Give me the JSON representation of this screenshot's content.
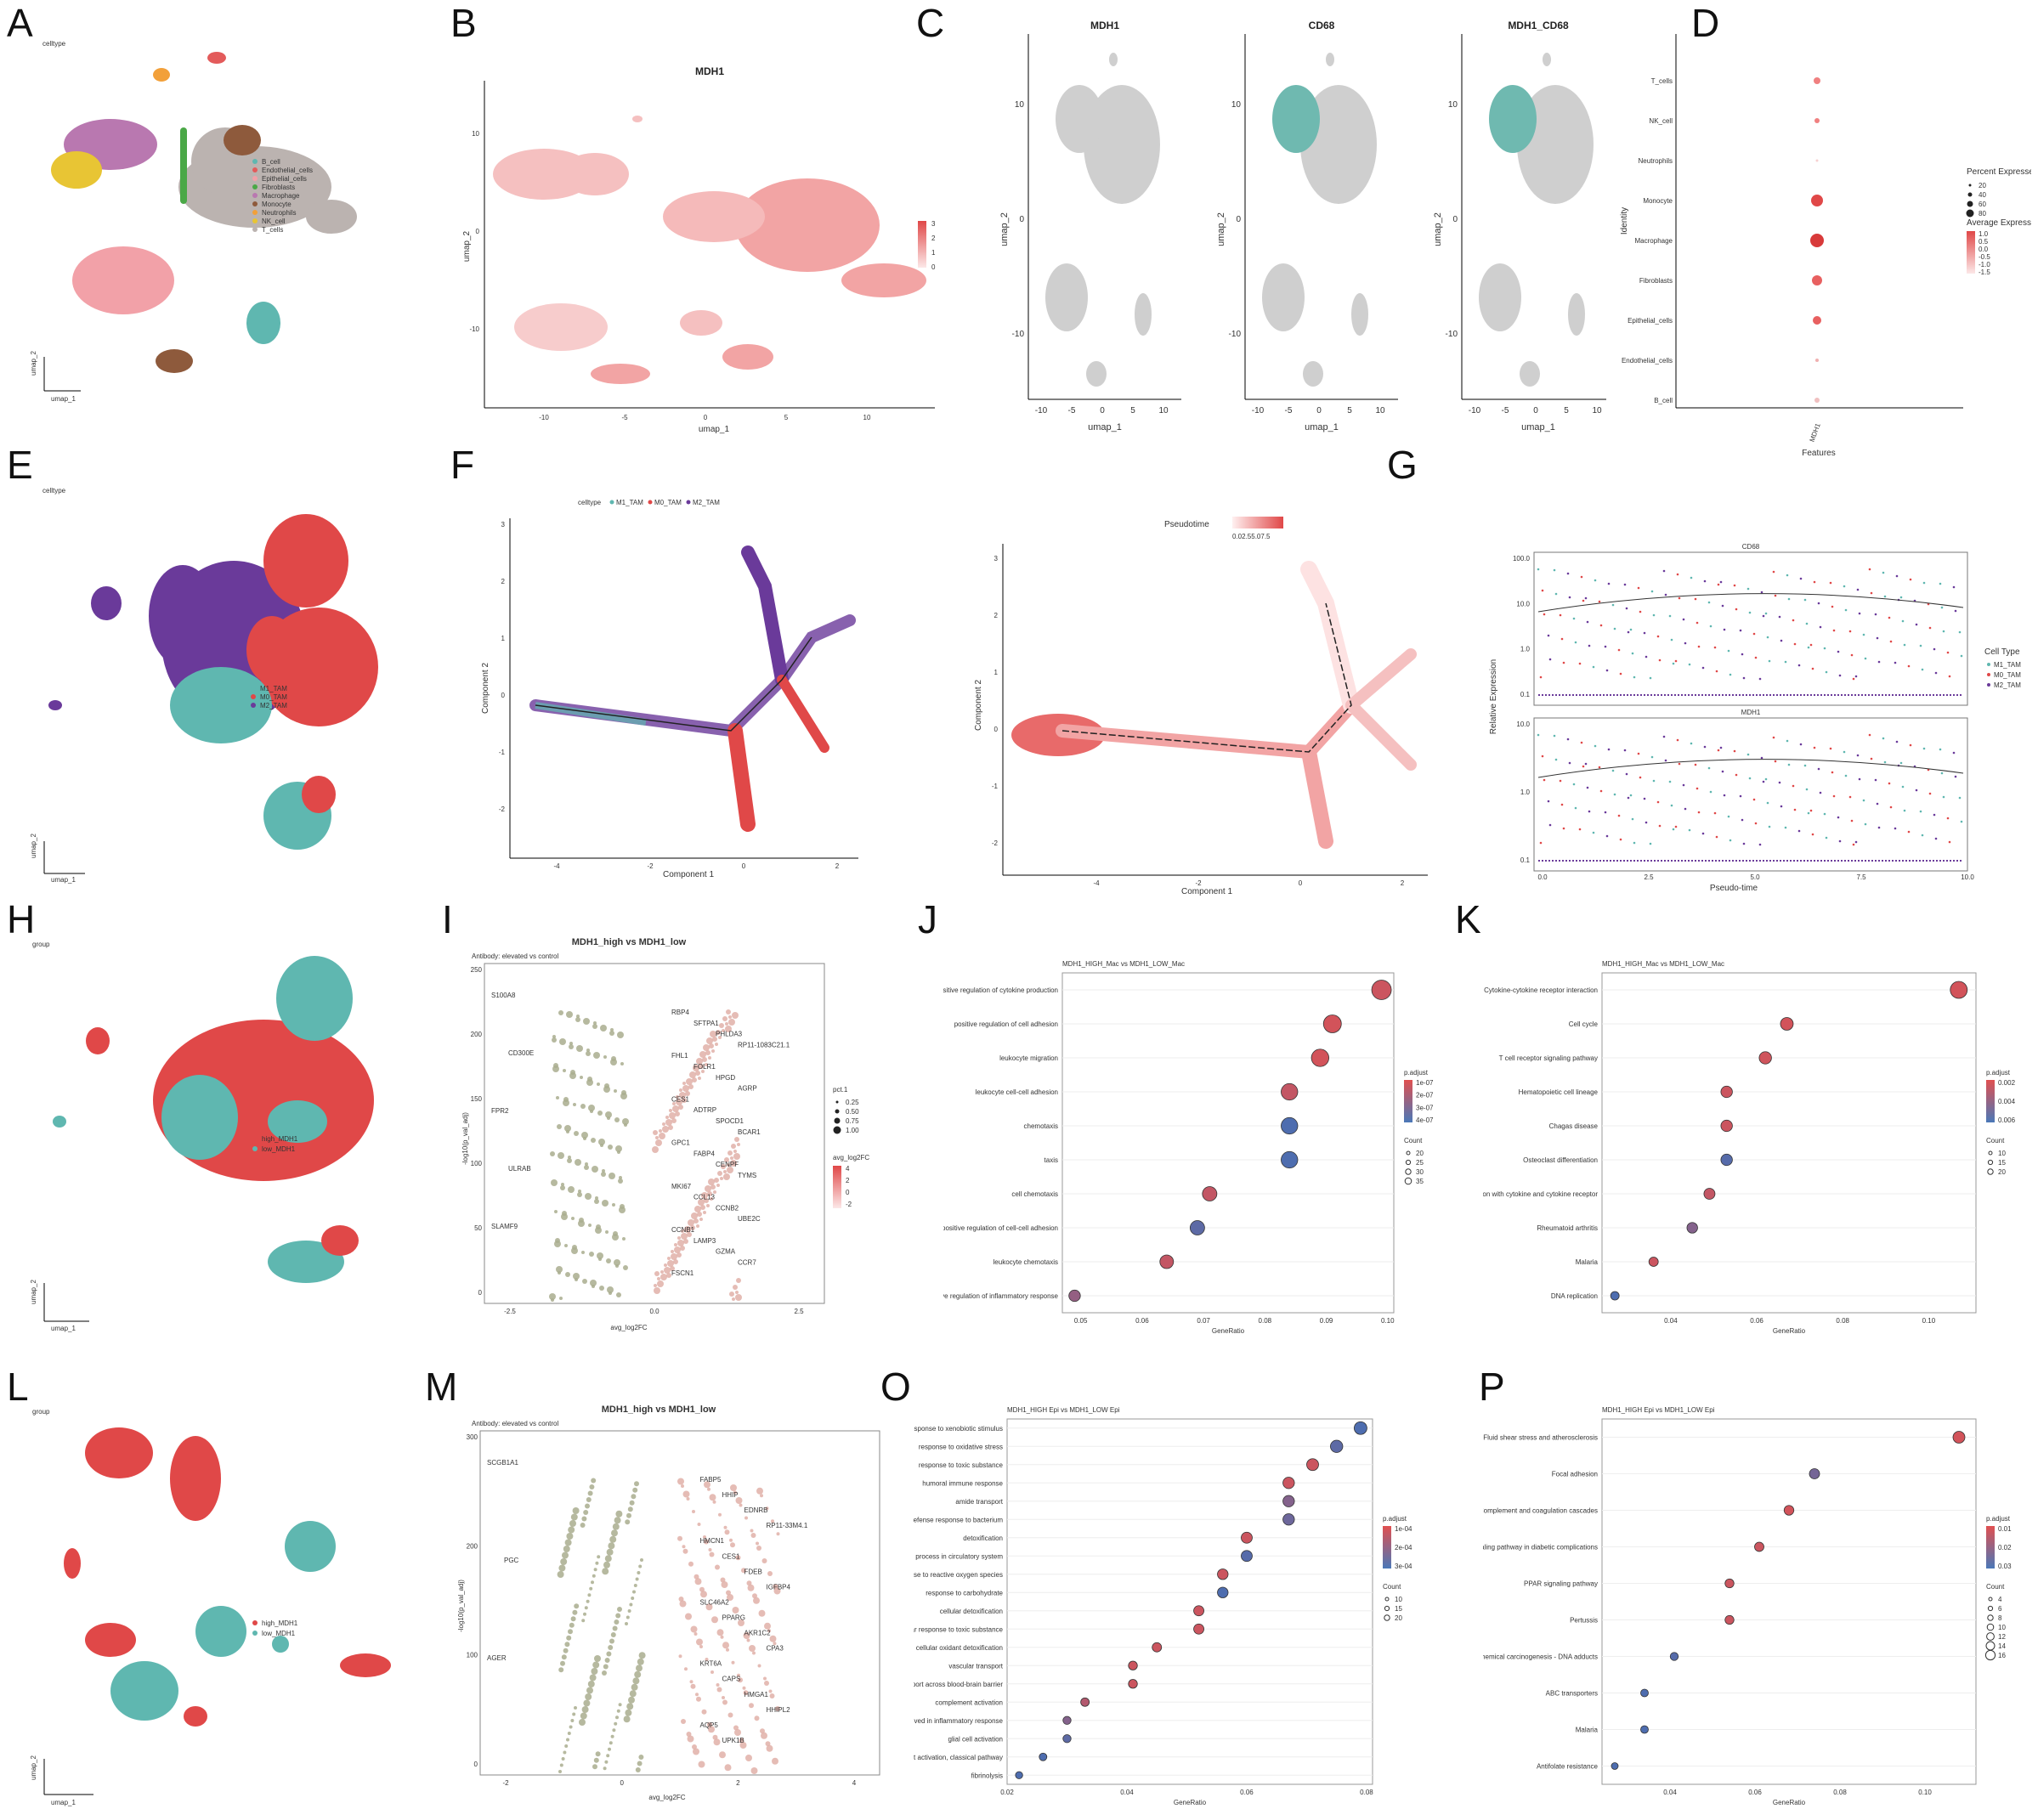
{
  "panels": {
    "A": {
      "letter": "A",
      "tag": "celltype",
      "axis_x": "umap_1",
      "axis_y": "umap_2",
      "legend": [
        {
          "label": "B_cell",
          "color": "#5fb7b0"
        },
        {
          "label": "Endothelial_cells",
          "color": "#e35b5b"
        },
        {
          "label": "Epithelial_cells",
          "color": "#f2a1a8"
        },
        {
          "label": "Fibroblasts",
          "color": "#4aa847"
        },
        {
          "label": "Macrophage",
          "color": "#b978b0"
        },
        {
          "label": "Monocyte",
          "color": "#8e5a3c"
        },
        {
          "label": "Neutrophils",
          "color": "#f2a03a"
        },
        {
          "label": "NK_cell",
          "color": "#e8c534"
        },
        {
          "label": "T_cells",
          "color": "#bbb3b0"
        }
      ]
    },
    "B": {
      "letter": "B",
      "title": "MDH1",
      "xlabel": "umap_1",
      "ylabel": "umap_2",
      "xticks": [
        "-10",
        "-5",
        "0",
        "5",
        "10"
      ],
      "yticks": [
        "10",
        "0",
        "-10"
      ],
      "scale": [
        "3",
        "2",
        "1",
        "0"
      ]
    },
    "C": {
      "letter": "C",
      "titles": [
        "MDH1",
        "CD68",
        "MDH1_CD68"
      ],
      "xlabel": "umap_1",
      "ylabel": "umap_2",
      "xticks": [
        "-10",
        "-5",
        "0",
        "5",
        "10"
      ],
      "yticks": [
        "10",
        "0",
        "-10"
      ]
    },
    "D": {
      "letter": "D",
      "ylabel": "Identity",
      "xlabel": "Features",
      "feature": "MDH1",
      "rows": [
        "T_cells",
        "NK_cell",
        "Neutrophils",
        "Monocyte",
        "Macrophage",
        "Fibroblasts",
        "Epithelial_cells",
        "Endothelial_cells",
        "B_cell"
      ],
      "legend_pct_title": "Percent Expressed",
      "legend_pct": [
        "20",
        "40",
        "60",
        "80"
      ],
      "legend_avg_title": "Average Expression",
      "legend_avg": [
        "1.0",
        "0.5",
        "0.0",
        "-0.5",
        "-1.0",
        "-1.5"
      ]
    },
    "E": {
      "letter": "E",
      "tag": "celltype",
      "axis_x": "umap_1",
      "axis_y": "umap_2",
      "legend": [
        {
          "label": "M1_TAM",
          "color": "#5fb7b0"
        },
        {
          "label": "M0_TAM",
          "color": "#e04848"
        },
        {
          "label": "M2_TAM",
          "color": "#6a3a9a"
        }
      ]
    },
    "F": {
      "letter": "F",
      "legend_title": "celltype",
      "legend": [
        "M1_TAM",
        "M0_TAM",
        "M2_TAM"
      ],
      "xlabel": "Component 1",
      "ylabel": "Component 2",
      "xticks": [
        "-4",
        "-2",
        "0",
        "2"
      ],
      "yticks": [
        "3",
        "2",
        "1",
        "0",
        "-1",
        "-2"
      ]
    },
    "F2": {
      "title": "Pseudotime",
      "scale": "0.02.55.07.5",
      "xlabel": "Component 1",
      "ylabel": "Component 2",
      "xticks": [
        "-4",
        "-2",
        "0",
        "2"
      ],
      "yticks": [
        "3",
        "2",
        "1",
        "0",
        "-1",
        "-2"
      ]
    },
    "G": {
      "letter": "G",
      "genes": [
        "CD68",
        "MDH1"
      ],
      "xlabel": "Pseudo-time",
      "ylabel": "Relative Expression",
      "xticks": [
        "0.0",
        "2.5",
        "5.0",
        "7.5",
        "10.0"
      ],
      "yticks_top": [
        "100.0",
        "10.0",
        "1.0",
        "0.1"
      ],
      "yticks_bottom": [
        "10.0",
        "1.0",
        "0.1"
      ],
      "legend_title": "Cell Type",
      "legend": [
        "M1_TAM",
        "M0_TAM",
        "M2_TAM"
      ]
    },
    "H": {
      "letter": "H",
      "tag": "group",
      "axis_x": "umap_1",
      "axis_y": "umap_2",
      "legend": [
        {
          "label": "high_MDH1",
          "color": "#e04848"
        },
        {
          "label": "low_MDH1",
          "color": "#5fb7b0"
        }
      ]
    },
    "I": {
      "letter": "I",
      "title": "MDH1_high vs MDH1_low",
      "subtitle": "Antibody: elevated vs control",
      "xlabel": "avg_log2FC",
      "ylabel": "-log10(p_val_adj)",
      "xticks": [
        "-2.5",
        "0.0",
        "2.5"
      ],
      "yticks": [
        "250",
        "200",
        "150",
        "100",
        "50",
        "0"
      ],
      "legend_size_title": "pct.1",
      "legend_size": [
        "0.25",
        "0.50",
        "0.75",
        "1.00"
      ],
      "legend_color_title": "avg_log2FC",
      "legend_color": [
        "4",
        "2",
        "0",
        "-2"
      ],
      "genes_left": [
        "S100A8",
        "CD300E",
        "FPR2",
        "ULRAB",
        "SLAMF9"
      ],
      "genes_right": [
        "RBP4",
        "SFTPA1",
        "PHLDA3",
        "RP11-1083C21.1",
        "FHL1",
        "FOLR1",
        "HPGD",
        "AGRP",
        "CES1",
        "ADTRP",
        "SPOCD1",
        "BCAR1",
        "GPC1",
        "FABP4",
        "CENPF",
        "TYMS",
        "MKI67",
        "CCL13",
        "CCNB2",
        "UBE2C",
        "CCNB1",
        "LAMP3",
        "GZMA",
        "CCR7",
        "FSCN1"
      ]
    },
    "J": {
      "letter": "J",
      "title": "MDH1_HIGH_Mac vs MDH1_LOW_Mac",
      "xlabel": "GeneRatio",
      "xticks": [
        "0.05",
        "0.06",
        "0.07",
        "0.08",
        "0.09",
        "0.10"
      ],
      "terms": [
        {
          "label": "positive regulation of cytokine production",
          "x": 0.099,
          "c": 0.15,
          "s": 34
        },
        {
          "label": "positive regulation of cell adhesion",
          "x": 0.091,
          "c": 0.1,
          "s": 30
        },
        {
          "label": "leukocyte migration",
          "x": 0.089,
          "c": 0.1,
          "s": 29
        },
        {
          "label": "leukocyte cell-cell adhesion",
          "x": 0.084,
          "c": 0.2,
          "s": 27
        },
        {
          "label": "chemotaxis",
          "x": 0.084,
          "c": 0.95,
          "s": 27
        },
        {
          "label": "taxis",
          "x": 0.084,
          "c": 0.95,
          "s": 27
        },
        {
          "label": "cell chemotaxis",
          "x": 0.071,
          "c": 0.2,
          "s": 22
        },
        {
          "label": "positive regulation of cell-cell adhesion",
          "x": 0.069,
          "c": 0.85,
          "s": 22
        },
        {
          "label": "leukocyte chemotaxis",
          "x": 0.064,
          "c": 0.2,
          "s": 20
        },
        {
          "label": "positive regulation of inflammatory response",
          "x": 0.049,
          "c": 0.5,
          "s": 15
        }
      ],
      "legend_color_title": "p.adjust",
      "legend_color": [
        "1e-07",
        "2e-07",
        "3e-07",
        "4e-07"
      ],
      "legend_size_title": "Count",
      "legend_size": [
        "20",
        "25",
        "30",
        "35"
      ]
    },
    "K": {
      "letter": "K",
      "title": "MDH1_HIGH_Mac vs MDH1_LOW_Mac",
      "xlabel": "GeneRatio",
      "xticks": [
        "0.04",
        "0.06",
        "0.08",
        "0.10"
      ],
      "terms": [
        {
          "label": "Cytokine-cytokine receptor interaction",
          "x": 0.107,
          "c": 0.1,
          "s": 28
        },
        {
          "label": "Cell cycle",
          "x": 0.067,
          "c": 0.1,
          "s": 18
        },
        {
          "label": "T cell receptor signaling pathway",
          "x": 0.062,
          "c": 0.12,
          "s": 17
        },
        {
          "label": "Hematopoietic cell lineage",
          "x": 0.053,
          "c": 0.15,
          "s": 15
        },
        {
          "label": "Chagas disease",
          "x": 0.053,
          "c": 0.15,
          "s": 15
        },
        {
          "label": "Osteoclast differentiation",
          "x": 0.053,
          "c": 0.9,
          "s": 15
        },
        {
          "label": "Viral protein interaction with cytokine and cytokine receptor",
          "x": 0.049,
          "c": 0.2,
          "s": 14
        },
        {
          "label": "Rheumatoid arthritis",
          "x": 0.045,
          "c": 0.6,
          "s": 13
        },
        {
          "label": "Malaria",
          "x": 0.036,
          "c": 0.15,
          "s": 10
        },
        {
          "label": "DNA replication",
          "x": 0.027,
          "c": 0.95,
          "s": 8
        }
      ],
      "legend_color_title": "p.adjust",
      "legend_color": [
        "0.002",
        "0.004",
        "0.006"
      ],
      "legend_size_title": "Count",
      "legend_size": [
        "10",
        "15",
        "20"
      ]
    },
    "L": {
      "letter": "L",
      "tag": "group",
      "axis_x": "umap_1",
      "axis_y": "umap_2",
      "legend": [
        {
          "label": "high_MDH1",
          "color": "#e04848"
        },
        {
          "label": "low_MDH1",
          "color": "#5fb7b0"
        }
      ]
    },
    "M": {
      "letter": "M",
      "title": "MDH1_high vs MDH1_low",
      "subtitle": "Antibody: elevated vs control",
      "xlabel": "avg_log2FC",
      "ylabel": "-log10(p_val_adj)",
      "xticks": [
        "-2",
        "0",
        "2",
        "4"
      ],
      "yticks": [
        "300",
        "200",
        "100",
        "0"
      ],
      "genes_left": [
        "SCGB1A1",
        "PGC",
        "AGER"
      ],
      "genes_right": [
        "FABP5",
        "HHIP",
        "EDNRB",
        "RP11-33M4.1",
        "HMCN1",
        "CES1",
        "FDEB",
        "IGFBP4",
        "SLC46A2",
        "PPARG",
        "AKR1C2",
        "CPA3",
        "KRT6A",
        "CAPS",
        "HMGA1",
        "HHIPL2",
        "AQP5",
        "UPK1B"
      ]
    },
    "O": {
      "letter": "O",
      "title": "MDH1_HIGH Epi vs MDH1_LOW Epi",
      "xlabel": "GeneRatio",
      "xticks": [
        "0.02",
        "0.04",
        "0.06",
        "0.08"
      ],
      "terms": [
        {
          "label": "response to xenobiotic stimulus",
          "x": 0.079,
          "c": 0.95,
          "s": 18
        },
        {
          "label": "response to oxidative stress",
          "x": 0.075,
          "c": 0.85,
          "s": 17
        },
        {
          "label": "response to toxic substance",
          "x": 0.071,
          "c": 0.15,
          "s": 16
        },
        {
          "label": "humoral immune response",
          "x": 0.067,
          "c": 0.15,
          "s": 15
        },
        {
          "label": "amide transport",
          "x": 0.067,
          "c": 0.6,
          "s": 15
        },
        {
          "label": "defense response to bacterium",
          "x": 0.067,
          "c": 0.75,
          "s": 15
        },
        {
          "label": "detoxification",
          "x": 0.06,
          "c": 0.15,
          "s": 14
        },
        {
          "label": "vascular process in circulatory system",
          "x": 0.06,
          "c": 0.9,
          "s": 14
        },
        {
          "label": "response to reactive oxygen species",
          "x": 0.056,
          "c": 0.15,
          "s": 13
        },
        {
          "label": "response to carbohydrate",
          "x": 0.056,
          "c": 0.95,
          "s": 13
        },
        {
          "label": "cellular detoxification",
          "x": 0.052,
          "c": 0.15,
          "s": 12
        },
        {
          "label": "cellular response to toxic substance",
          "x": 0.052,
          "c": 0.15,
          "s": 12
        },
        {
          "label": "cellular oxidant detoxification",
          "x": 0.045,
          "c": 0.15,
          "s": 10
        },
        {
          "label": "vascular transport",
          "x": 0.041,
          "c": 0.15,
          "s": 9
        },
        {
          "label": "transport across blood-brain barrier",
          "x": 0.041,
          "c": 0.15,
          "s": 9
        },
        {
          "label": "complement activation",
          "x": 0.033,
          "c": 0.3,
          "s": 8
        },
        {
          "label": "leukocyte activation involved in inflammatory response",
          "x": 0.03,
          "c": 0.6,
          "s": 7
        },
        {
          "label": "glial cell activation",
          "x": 0.03,
          "c": 0.85,
          "s": 7
        },
        {
          "label": "complement activation, classical pathway",
          "x": 0.026,
          "c": 0.95,
          "s": 6
        },
        {
          "label": "fibrinolysis",
          "x": 0.022,
          "c": 0.95,
          "s": 5
        }
      ],
      "legend_color_title": "p.adjust",
      "legend_color": [
        "1e-04",
        "2e-04",
        "3e-04"
      ],
      "legend_size_title": "Count",
      "legend_size": [
        "10",
        "15",
        "20"
      ]
    },
    "P": {
      "letter": "P",
      "title": "MDH1_HIGH Epi vs MDH1_LOW Epi",
      "xlabel": "GeneRatio",
      "xticks": [
        "0.04",
        "0.06",
        "0.08",
        "0.10"
      ],
      "terms": [
        {
          "label": "Fluid shear stress and atherosclerosis",
          "x": 0.108,
          "c": 0.1,
          "s": 16
        },
        {
          "label": "Focal adhesion",
          "x": 0.074,
          "c": 0.7,
          "s": 12
        },
        {
          "label": "Complement and coagulation cascades",
          "x": 0.068,
          "c": 0.1,
          "s": 11
        },
        {
          "label": "AGE-RAGE signaling pathway in diabetic complications",
          "x": 0.061,
          "c": 0.15,
          "s": 10
        },
        {
          "label": "PPAR signaling pathway",
          "x": 0.054,
          "c": 0.15,
          "s": 9
        },
        {
          "label": "Pertussis",
          "x": 0.054,
          "c": 0.15,
          "s": 9
        },
        {
          "label": "Chemical carcinogenesis - DNA adducts",
          "x": 0.041,
          "c": 0.9,
          "s": 7
        },
        {
          "label": "ABC transporters",
          "x": 0.034,
          "c": 0.95,
          "s": 6
        },
        {
          "label": "Malaria",
          "x": 0.034,
          "c": 0.95,
          "s": 6
        },
        {
          "label": "Antifolate resistance",
          "x": 0.027,
          "c": 0.95,
          "s": 4
        }
      ],
      "legend_color_title": "p.adjust",
      "legend_color": [
        "0.01",
        "0.02",
        "0.03"
      ],
      "legend_size_title": "Count",
      "legend_size": [
        "4",
        "6",
        "8",
        "10",
        "12",
        "14",
        "16"
      ]
    }
  },
  "chart_data": [
    {
      "type": "scatter",
      "id": "J",
      "title": "MDH1_HIGH_Mac vs MDH1_LOW_Mac",
      "xlabel": "GeneRatio",
      "categories": [
        "positive regulation of cytokine production",
        "positive regulation of cell adhesion",
        "leukocyte migration",
        "leukocyte cell-cell adhesion",
        "chemotaxis",
        "taxis",
        "cell chemotaxis",
        "positive regulation of cell-cell adhesion",
        "leukocyte chemotaxis",
        "positive regulation of inflammatory response"
      ],
      "values": [
        0.099,
        0.091,
        0.089,
        0.084,
        0.084,
        0.084,
        0.071,
        0.069,
        0.064,
        0.049
      ],
      "xlim": [
        0.047,
        0.101
      ]
    },
    {
      "type": "scatter",
      "id": "K",
      "title": "MDH1_HIGH_Mac vs MDH1_LOW_Mac",
      "xlabel": "GeneRatio",
      "categories": [
        "Cytokine-cytokine receptor interaction",
        "Cell cycle",
        "T cell receptor signaling pathway",
        "Hematopoietic cell lineage",
        "Chagas disease",
        "Osteoclast differentiation",
        "Viral protein interaction with cytokine and cytokine receptor",
        "Rheumatoid arthritis",
        "Malaria",
        "DNA replication"
      ],
      "values": [
        0.107,
        0.067,
        0.062,
        0.053,
        0.053,
        0.053,
        0.049,
        0.045,
        0.036,
        0.027
      ],
      "xlim": [
        0.024,
        0.111
      ]
    },
    {
      "type": "scatter",
      "id": "O",
      "title": "MDH1_HIGH Epi vs MDH1_LOW Epi",
      "xlabel": "GeneRatio",
      "values": [
        0.079,
        0.075,
        0.071,
        0.067,
        0.067,
        0.067,
        0.06,
        0.06,
        0.056,
        0.056,
        0.052,
        0.052,
        0.045,
        0.041,
        0.041,
        0.033,
        0.03,
        0.03,
        0.026,
        0.022
      ],
      "xlim": [
        0.02,
        0.081
      ]
    },
    {
      "type": "scatter",
      "id": "P",
      "title": "MDH1_HIGH Epi vs MDH1_LOW Epi",
      "xlabel": "GeneRatio",
      "values": [
        0.108,
        0.074,
        0.068,
        0.061,
        0.054,
        0.054,
        0.041,
        0.034,
        0.034,
        0.027
      ],
      "xlim": [
        0.024,
        0.112
      ]
    }
  ]
}
